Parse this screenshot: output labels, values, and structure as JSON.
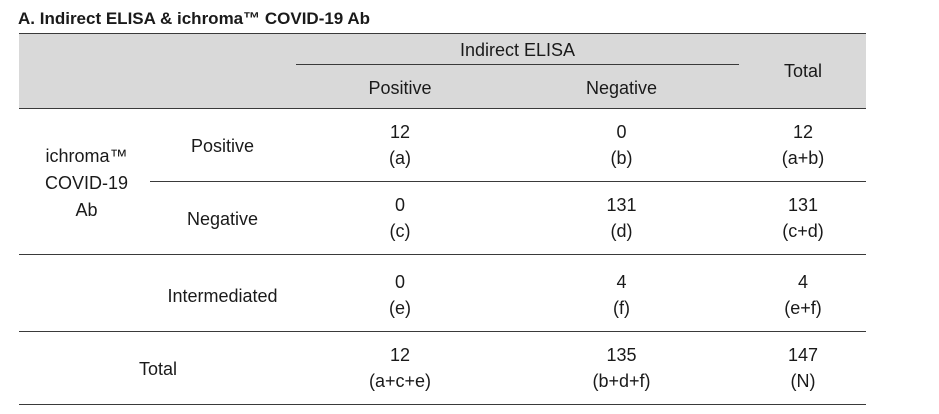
{
  "title": "A. Indirect ELISA & ichroma™ COVID-19 Ab",
  "header": {
    "group": "Indirect ELISA",
    "positive": "Positive",
    "negative": "Negative",
    "total": "Total"
  },
  "row_group": [
    "ichroma™",
    "COVID-19",
    "Ab"
  ],
  "rows": [
    {
      "label": "Positive",
      "pos": "12",
      "pos_sub": "(a)",
      "neg": "0",
      "neg_sub": "(b)",
      "tot": "12",
      "tot_sub": "(a+b)"
    },
    {
      "label": "Negative",
      "pos": "0",
      "pos_sub": "(c)",
      "neg": "131",
      "neg_sub": "(d)",
      "tot": "131",
      "tot_sub": "(c+d)"
    },
    {
      "label": "Intermediated",
      "pos": "0",
      "pos_sub": "(e)",
      "neg": "4",
      "neg_sub": "(f)",
      "tot": "4",
      "tot_sub": "(e+f)"
    },
    {
      "label": "Total",
      "pos": "12",
      "pos_sub": "(a+c+e)",
      "neg": "135",
      "neg_sub": "(b+d+f)",
      "tot": "147",
      "tot_sub": "(N)"
    }
  ]
}
